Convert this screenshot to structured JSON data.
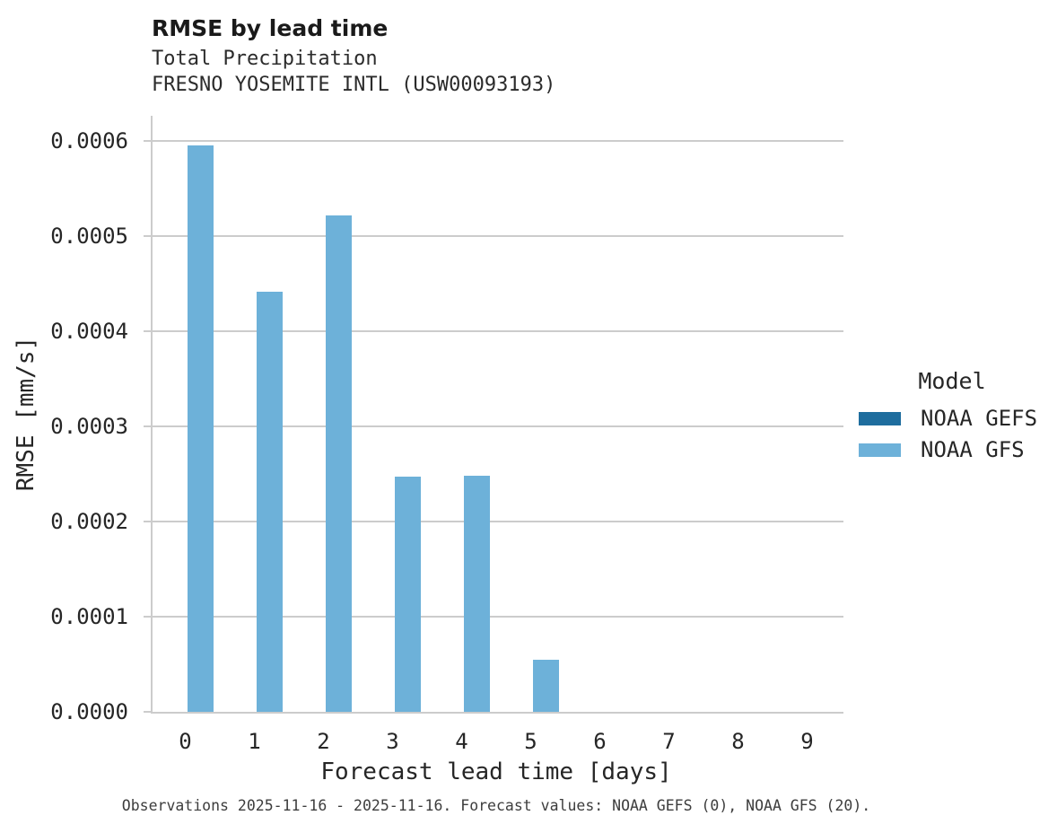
{
  "figure": {
    "title": "RMSE by lead time",
    "subtitle_line1": "Total Precipitation",
    "subtitle_line2": "FRESNO YOSEMITE INTL (USW00093193)",
    "caption": "Observations 2025-11-16 - 2025-11-16. Forecast values: NOAA GEFS (0), NOAA GFS (20)."
  },
  "legend": {
    "title": "Model",
    "entries": [
      {
        "label": "NOAA GEFS",
        "color": "#1e6d9e"
      },
      {
        "label": "NOAA GFS",
        "color": "#6db1d9"
      }
    ]
  },
  "chart_data": {
    "type": "bar",
    "title": "RMSE by lead time",
    "subtitle": [
      "Total Precipitation",
      "FRESNO YOSEMITE INTL (USW00093193)"
    ],
    "xlabel": "Forecast lead time [days]",
    "ylabel": "RMSE [mm/s]",
    "categories": [
      "0",
      "1",
      "2",
      "3",
      "4",
      "5",
      "6",
      "7",
      "8",
      "9"
    ],
    "series": [
      {
        "name": "NOAA GEFS",
        "color": "#1e6d9e",
        "values": [
          0,
          0,
          0,
          0,
          0,
          0,
          0,
          0,
          0,
          0
        ]
      },
      {
        "name": "NOAA GFS",
        "color": "#6db1d9",
        "values": [
          0.000595,
          0.000441,
          0.000521,
          0.000247,
          0.000248,
          5.5e-05,
          0,
          0,
          0,
          0
        ]
      }
    ],
    "ylim": [
      0,
      0.000626
    ],
    "ytick_values": [
      0,
      0.0001,
      0.0002,
      0.0003,
      0.0004,
      0.0005,
      0.0006
    ],
    "ytick_labels": [
      "0.0000",
      "0.0001",
      "0.0002",
      "0.0003",
      "0.0004",
      "0.0005",
      "0.0006"
    ],
    "grid": "horizontal",
    "legend_title": "Model",
    "legend_position": "center-right",
    "caption": "Observations 2025-11-16 - 2025-11-16. Forecast values: NOAA GEFS (0), NOAA GFS (20)."
  }
}
